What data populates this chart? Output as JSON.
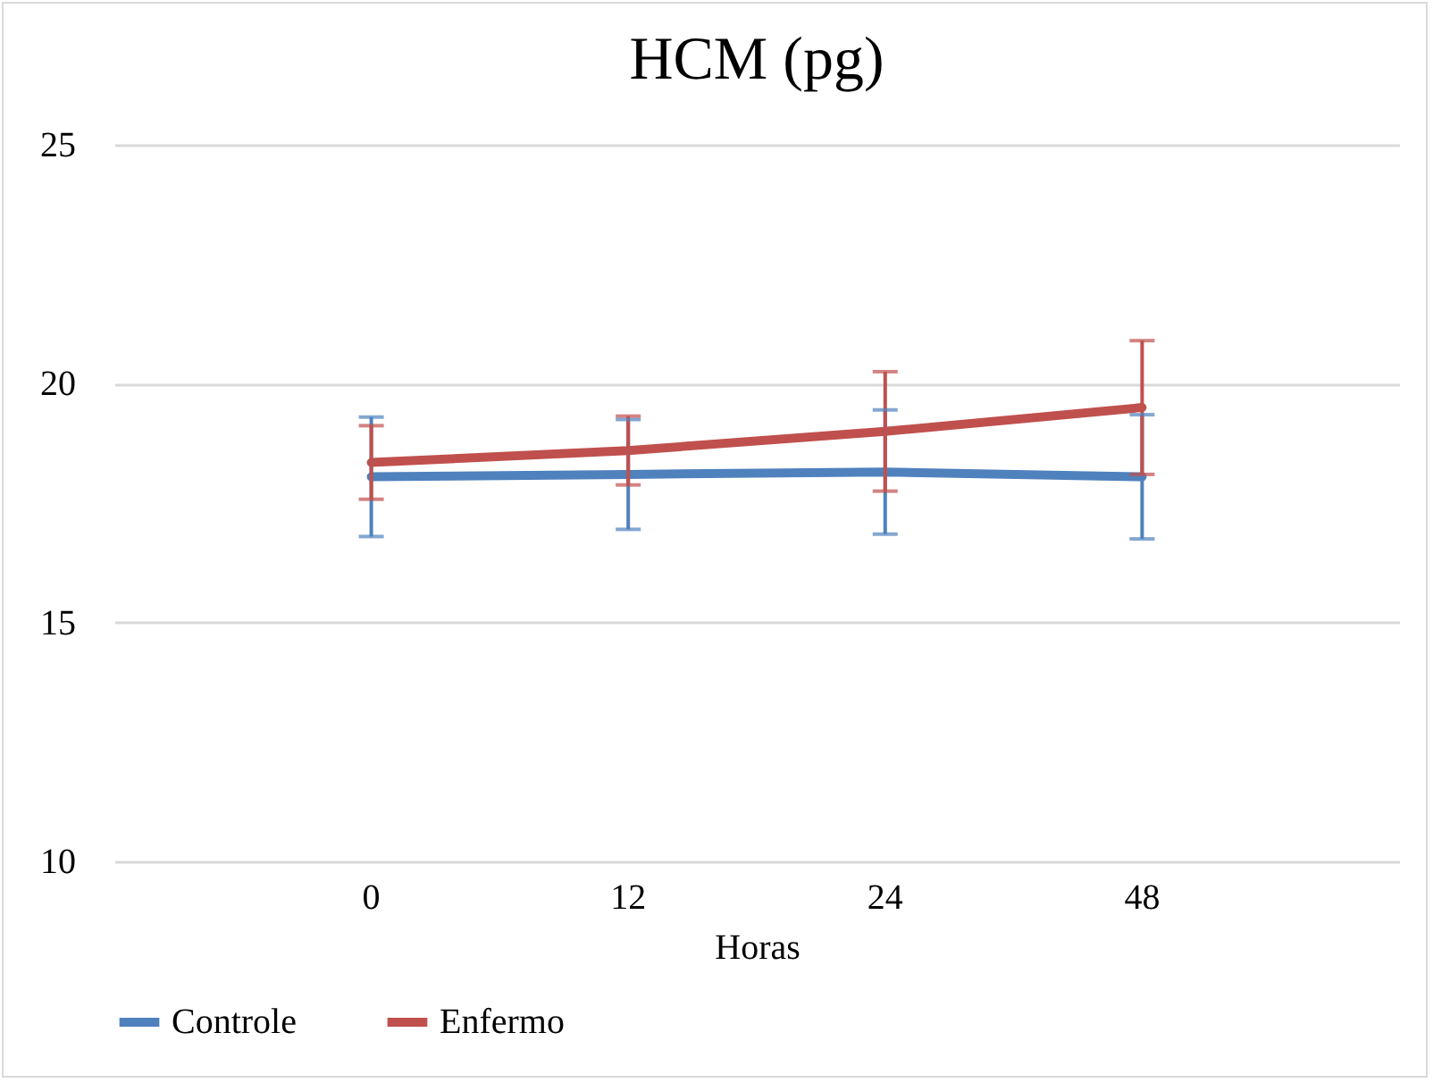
{
  "chart_data": {
    "type": "line",
    "title": "HCM (pg)",
    "xlabel": "Horas",
    "categories": [
      "0",
      "12",
      "24",
      "48"
    ],
    "series": [
      {
        "name": "Controle",
        "color": "#4f81bd",
        "values": [
          18.05,
          18.1,
          18.15,
          18.05
        ],
        "errors": [
          1.25,
          1.15,
          1.3,
          1.3
        ]
      },
      {
        "name": "Enfermo",
        "color": "#c0504d",
        "values": [
          18.35,
          18.6,
          19.0,
          19.5
        ],
        "errors": [
          0.77,
          0.72,
          1.25,
          1.4
        ]
      }
    ],
    "ylim": [
      10,
      25
    ],
    "yticks": [
      10,
      15,
      20,
      25
    ],
    "grid": "y",
    "legend": "bottom",
    "marker": "none",
    "line_style": "solid"
  }
}
